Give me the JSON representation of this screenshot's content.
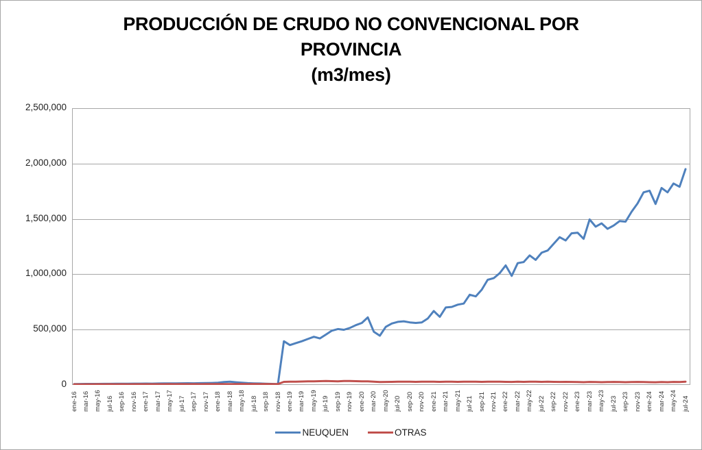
{
  "chart": {
    "title_lines": [
      "PRODUCCIÓN DE CRUDO NO CONVENCIONAL POR",
      "PROVINCIA",
      "(m3/mes)"
    ]
  },
  "chart_data": {
    "type": "line",
    "title": "PRODUCCIÓN DE CRUDO NO CONVENCIONAL POR PROVINCIA (m3/mes)",
    "xlabel": "",
    "ylabel": "",
    "ylim": [
      0,
      2500000
    ],
    "y_ticks": [
      0,
      500000,
      1000000,
      1500000,
      2000000,
      2500000
    ],
    "y_tick_labels": [
      "0",
      "500,000",
      "1,000,000",
      "1,500,000",
      "2,000,000",
      "2,500,000"
    ],
    "x_tick_every": 2,
    "grid": true,
    "legend_position": "bottom",
    "grid_color": "#a6a6a6",
    "categories": [
      "ene-16",
      "feb-16",
      "mar-16",
      "abr-16",
      "may-16",
      "jun-16",
      "jul-16",
      "ago-16",
      "sep-16",
      "oct-16",
      "nov-16",
      "dic-16",
      "ene-17",
      "feb-17",
      "mar-17",
      "abr-17",
      "may-17",
      "jun-17",
      "jul-17",
      "ago-17",
      "sep-17",
      "oct-17",
      "nov-17",
      "dic-17",
      "ene-18",
      "feb-18",
      "mar-18",
      "abr-18",
      "may-18",
      "jun-18",
      "jul-18",
      "ago-18",
      "sep-18",
      "oct-18",
      "nov-18",
      "dic-18",
      "ene-19",
      "feb-19",
      "mar-19",
      "abr-19",
      "may-19",
      "jun-19",
      "jul-19",
      "ago-19",
      "sep-19",
      "oct-19",
      "nov-19",
      "dic-19",
      "ene-20",
      "feb-20",
      "mar-20",
      "abr-20",
      "may-20",
      "jun-20",
      "jul-20",
      "ago-20",
      "sep-20",
      "oct-20",
      "nov-20",
      "dic-20",
      "ene-21",
      "feb-21",
      "mar-21",
      "abr-21",
      "may-21",
      "jun-21",
      "jul-21",
      "ago-21",
      "sep-21",
      "oct-21",
      "nov-21",
      "dic-21",
      "ene-22",
      "feb-22",
      "mar-22",
      "abr-22",
      "may-22",
      "jun-22",
      "jul-22",
      "ago-22",
      "sep-22",
      "oct-22",
      "nov-22",
      "dic-22",
      "ene-23",
      "feb-23",
      "mar-23",
      "abr-23",
      "may-23",
      "jun-23",
      "jul-23",
      "ago-23",
      "sep-23",
      "oct-23",
      "nov-23",
      "dic-23",
      "ene-24",
      "feb-24",
      "mar-24",
      "abr-24",
      "may-24",
      "jun-24",
      "jul-24"
    ],
    "series": [
      {
        "name": "NEUQUEN",
        "color": "#4F81BD",
        "values": [
          8000,
          8500,
          9000,
          9000,
          9500,
          10000,
          10000,
          10500,
          11000,
          11000,
          11500,
          12000,
          12500,
          12000,
          13000,
          13500,
          14000,
          14500,
          15000,
          15500,
          15000,
          16000,
          17000,
          18000,
          20000,
          26000,
          30000,
          24000,
          20000,
          16000,
          14000,
          13000,
          11000,
          9000,
          7000,
          395000,
          360000,
          378000,
          395000,
          415000,
          435000,
          420000,
          455000,
          490000,
          505000,
          498000,
          515000,
          540000,
          560000,
          610000,
          480000,
          445000,
          525000,
          555000,
          570000,
          575000,
          565000,
          560000,
          565000,
          600000,
          668000,
          615000,
          700000,
          705000,
          725000,
          735000,
          815000,
          800000,
          860000,
          950000,
          965000,
          1010000,
          1080000,
          985000,
          1100000,
          1110000,
          1170000,
          1130000,
          1195000,
          1215000,
          1275000,
          1335000,
          1305000,
          1370000,
          1375000,
          1320000,
          1495000,
          1430000,
          1460000,
          1410000,
          1440000,
          1480000,
          1475000,
          1565000,
          1640000,
          1740000,
          1755000,
          1635000,
          1780000,
          1740000,
          1820000,
          1790000,
          1950000
        ]
      },
      {
        "name": "OTRAS",
        "color": "#C0504D",
        "values": [
          6000,
          5500,
          6000,
          6000,
          6500,
          6000,
          6500,
          6000,
          6500,
          6000,
          6500,
          7000,
          7000,
          6500,
          7000,
          7000,
          7500,
          7000,
          7500,
          7000,
          7500,
          7000,
          7500,
          8000,
          8000,
          7500,
          8000,
          8000,
          8500,
          8000,
          8500,
          8000,
          8500,
          8000,
          8000,
          28000,
          30000,
          29000,
          31000,
          32000,
          33000,
          34000,
          35000,
          34000,
          33000,
          35000,
          36000,
          34000,
          32000,
          33000,
          30000,
          26000,
          27000,
          28000,
          29000,
          30000,
          29000,
          28000,
          29000,
          30000,
          29000,
          28000,
          30000,
          29000,
          28000,
          29000,
          30000,
          29000,
          28000,
          29000,
          30000,
          29000,
          28000,
          27000,
          29000,
          28000,
          30000,
          29000,
          28000,
          29000,
          28000,
          27000,
          28000,
          27000,
          26000,
          25000,
          27000,
          26000,
          25000,
          26000,
          27000,
          26000,
          25000,
          26000,
          27000,
          26000,
          25000,
          24000,
          26000,
          25000,
          27000,
          26000,
          30000
        ]
      }
    ]
  }
}
